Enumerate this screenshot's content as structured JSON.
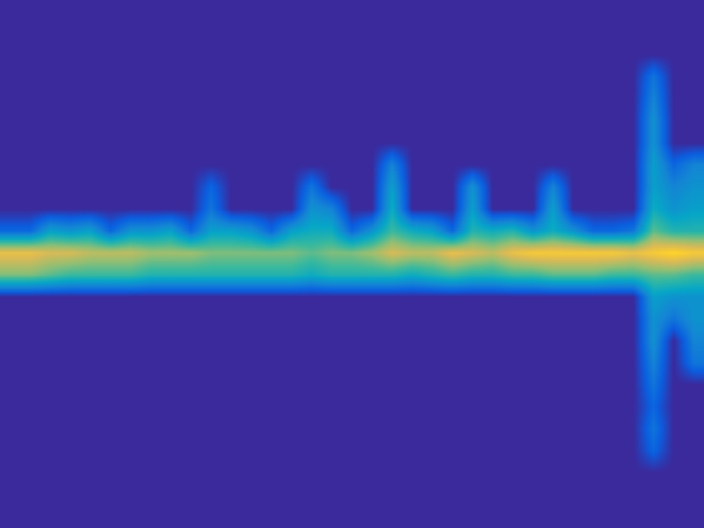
{
  "chart_data": {
    "type": "heatmap",
    "tick_labels": false,
    "color_range": [
      0,
      1
    ],
    "cells": [
      [
        0,
        0,
        0,
        0,
        0,
        0,
        0,
        0,
        0,
        0,
        0,
        0,
        0,
        0,
        0,
        0,
        0,
        0,
        0,
        0,
        0,
        0,
        0,
        0,
        0,
        0,
        0,
        0,
        0,
        0,
        0,
        0,
        0,
        0,
        0
      ],
      [
        0,
        0,
        0,
        0,
        0,
        0,
        0,
        0,
        0,
        0,
        0,
        0,
        0,
        0,
        0,
        0,
        0,
        0,
        0,
        0,
        0,
        0,
        0,
        0,
        0,
        0,
        0,
        0,
        0,
        0,
        0,
        0,
        0,
        0,
        0
      ],
      [
        0,
        0,
        0,
        0,
        0,
        0,
        0,
        0,
        0,
        0,
        0,
        0,
        0,
        0,
        0,
        0,
        0,
        0,
        0,
        0,
        0,
        0,
        0,
        0,
        0,
        0,
        0,
        0,
        0,
        0,
        0,
        0,
        0,
        0,
        0
      ],
      [
        0,
        0,
        0,
        0,
        0,
        0,
        0,
        0,
        0,
        0,
        0,
        0,
        0,
        0,
        0,
        0,
        0,
        0,
        0,
        0,
        0,
        0,
        0,
        0,
        0,
        0,
        0,
        0,
        0,
        0,
        0,
        0,
        0.2,
        0,
        0
      ],
      [
        0,
        0,
        0,
        0,
        0,
        0,
        0,
        0,
        0,
        0,
        0,
        0,
        0,
        0,
        0,
        0,
        0,
        0,
        0,
        0,
        0,
        0,
        0,
        0,
        0,
        0,
        0,
        0,
        0,
        0,
        0,
        0,
        0.25,
        0,
        0
      ],
      [
        0,
        0,
        0,
        0,
        0,
        0,
        0,
        0,
        0,
        0,
        0,
        0,
        0,
        0,
        0,
        0,
        0,
        0,
        0,
        0,
        0,
        0,
        0,
        0,
        0,
        0,
        0,
        0,
        0,
        0,
        0,
        0,
        0.3,
        0,
        0
      ],
      [
        0,
        0,
        0,
        0,
        0,
        0,
        0,
        0,
        0,
        0,
        0,
        0,
        0,
        0,
        0,
        0,
        0,
        0,
        0,
        0,
        0,
        0,
        0,
        0,
        0,
        0,
        0,
        0,
        0,
        0,
        0,
        0,
        0.3,
        0,
        0
      ],
      [
        0,
        0,
        0,
        0,
        0,
        0,
        0,
        0,
        0,
        0,
        0,
        0,
        0,
        0,
        0,
        0,
        0,
        0,
        0,
        0.25,
        0,
        0,
        0,
        0,
        0,
        0,
        0,
        0,
        0,
        0,
        0,
        0,
        0.35,
        0.15,
        0.25
      ],
      [
        0,
        0,
        0,
        0,
        0,
        0,
        0,
        0,
        0,
        0,
        0.15,
        0,
        0,
        0,
        0,
        0.2,
        0,
        0,
        0,
        0.35,
        0,
        0,
        0,
        0.3,
        0,
        0,
        0,
        0.25,
        0,
        0,
        0,
        0,
        0.35,
        0.25,
        0.3
      ],
      [
        0,
        0,
        0,
        0,
        0,
        0,
        0,
        0,
        0,
        0,
        0.2,
        0,
        0,
        0,
        0,
        0.3,
        0.25,
        0,
        0,
        0.4,
        0,
        0,
        0,
        0.35,
        0,
        0,
        0,
        0.35,
        0,
        0,
        0,
        0,
        0.4,
        0.3,
        0.35
      ],
      [
        0.15,
        0.15,
        0.35,
        0.3,
        0.35,
        0.15,
        0.3,
        0.3,
        0.35,
        0.15,
        0.35,
        0.35,
        0.3,
        0.15,
        0.35,
        0.4,
        0.4,
        0.15,
        0.3,
        0.5,
        0.4,
        0.35,
        0.15,
        0.45,
        0.4,
        0.45,
        0.3,
        0.4,
        0.3,
        0.15,
        0.15,
        0.2,
        0.55,
        0.45,
        0.45
      ],
      [
        0.8,
        0.8,
        0.75,
        0.75,
        0.7,
        0.7,
        0.7,
        0.65,
        0.65,
        0.65,
        0.6,
        0.6,
        0.6,
        0.6,
        0.6,
        0.55,
        0.6,
        0.6,
        0.65,
        0.75,
        0.7,
        0.7,
        0.8,
        0.75,
        0.7,
        0.8,
        0.85,
        0.85,
        0.85,
        0.85,
        0.85,
        0.8,
        0.85,
        0.9,
        0.85
      ],
      [
        0.6,
        0.6,
        0.55,
        0.5,
        0.5,
        0.5,
        0.5,
        0.45,
        0.45,
        0.45,
        0.45,
        0.45,
        0.45,
        0.45,
        0.45,
        0.4,
        0.45,
        0.45,
        0.45,
        0.45,
        0.4,
        0.45,
        0.5,
        0.45,
        0.45,
        0.5,
        0.5,
        0.55,
        0.55,
        0.55,
        0.5,
        0.5,
        0.55,
        0.55,
        0.5
      ],
      [
        0,
        0,
        0,
        0,
        0,
        0,
        0,
        0,
        0,
        0,
        0,
        0,
        0,
        0,
        0,
        0,
        0,
        0,
        0,
        0,
        0,
        0,
        0,
        0,
        0,
        0,
        0,
        0,
        0,
        0,
        0,
        0,
        0.35,
        0.3,
        0.3
      ],
      [
        0,
        0,
        0,
        0,
        0,
        0,
        0,
        0,
        0,
        0,
        0,
        0,
        0,
        0,
        0,
        0,
        0,
        0,
        0,
        0,
        0,
        0,
        0,
        0,
        0,
        0,
        0,
        0,
        0,
        0,
        0,
        0,
        0.3,
        0.2,
        0.3
      ],
      [
        0,
        0,
        0,
        0,
        0,
        0,
        0,
        0,
        0,
        0,
        0,
        0,
        0,
        0,
        0,
        0,
        0,
        0,
        0,
        0,
        0,
        0,
        0,
        0,
        0,
        0,
        0,
        0,
        0,
        0,
        0,
        0,
        0.3,
        0,
        0.25
      ],
      [
        0,
        0,
        0,
        0,
        0,
        0,
        0,
        0,
        0,
        0,
        0,
        0,
        0,
        0,
        0,
        0,
        0,
        0,
        0,
        0,
        0,
        0,
        0,
        0,
        0,
        0,
        0,
        0,
        0,
        0,
        0,
        0,
        0.25,
        0,
        0.2
      ],
      [
        0,
        0,
        0,
        0,
        0,
        0,
        0,
        0,
        0,
        0,
        0,
        0,
        0,
        0,
        0,
        0,
        0,
        0,
        0,
        0,
        0,
        0,
        0,
        0,
        0,
        0,
        0,
        0,
        0,
        0,
        0,
        0,
        0.2,
        0,
        0
      ],
      [
        0,
        0,
        0,
        0,
        0,
        0,
        0,
        0,
        0,
        0,
        0,
        0,
        0,
        0,
        0,
        0,
        0,
        0,
        0,
        0,
        0,
        0,
        0,
        0,
        0,
        0,
        0,
        0,
        0,
        0,
        0,
        0,
        0.15,
        0,
        0
      ],
      [
        0,
        0,
        0,
        0,
        0,
        0,
        0,
        0,
        0,
        0,
        0,
        0,
        0,
        0,
        0,
        0,
        0,
        0,
        0,
        0,
        0,
        0,
        0,
        0,
        0,
        0,
        0,
        0,
        0,
        0,
        0,
        0,
        0.2,
        0,
        0
      ],
      [
        0,
        0,
        0,
        0,
        0,
        0,
        0,
        0,
        0,
        0,
        0,
        0,
        0,
        0,
        0,
        0,
        0,
        0,
        0,
        0,
        0,
        0,
        0,
        0,
        0,
        0,
        0,
        0,
        0,
        0,
        0,
        0,
        0.15,
        0,
        0
      ],
      [
        0,
        0,
        0,
        0,
        0,
        0,
        0,
        0,
        0,
        0,
        0,
        0,
        0,
        0,
        0,
        0,
        0,
        0,
        0,
        0,
        0,
        0,
        0,
        0,
        0,
        0,
        0,
        0,
        0,
        0,
        0,
        0,
        0,
        0,
        0
      ],
      [
        0,
        0,
        0,
        0,
        0,
        0,
        0,
        0,
        0,
        0,
        0,
        0,
        0,
        0,
        0,
        0,
        0,
        0,
        0,
        0,
        0,
        0,
        0,
        0,
        0,
        0,
        0,
        0,
        0,
        0,
        0,
        0,
        0,
        0,
        0
      ],
      [
        0,
        0,
        0,
        0,
        0,
        0,
        0,
        0,
        0,
        0,
        0,
        0,
        0,
        0,
        0,
        0,
        0,
        0,
        0,
        0,
        0,
        0,
        0,
        0,
        0,
        0,
        0,
        0,
        0,
        0,
        0,
        0,
        0,
        0,
        0
      ]
    ]
  }
}
